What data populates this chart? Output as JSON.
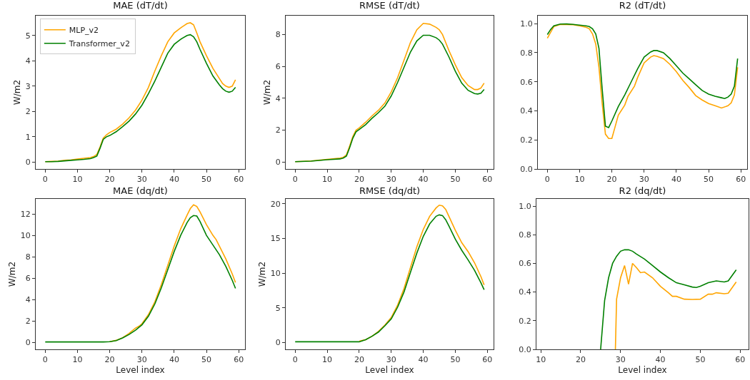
{
  "chart_data": [
    {
      "type": "line",
      "title": "MAE (dT/dt)",
      "ylabel": "W/m2",
      "legend": "top left",
      "xlim": [
        -2.95,
        61.95
      ],
      "xticks": [
        0,
        10,
        20,
        30,
        40,
        50,
        60
      ],
      "ylim": [
        -0.27,
        5.78
      ],
      "yticks": [
        0,
        1,
        2,
        3,
        4,
        5
      ],
      "series": [
        {
          "name": "MLP_v2",
          "color": "#ffa500",
          "x": [
            0,
            2,
            4,
            6,
            8,
            10,
            12,
            14,
            15,
            16,
            17,
            18,
            19,
            20,
            22,
            24,
            26,
            28,
            30,
            32,
            34,
            36,
            38,
            40,
            42,
            44,
            45,
            46,
            47,
            48,
            50,
            52,
            54,
            55,
            56,
            57,
            58,
            59
          ],
          "values": [
            0.02,
            0.03,
            0.04,
            0.07,
            0.09,
            0.12,
            0.15,
            0.18,
            0.22,
            0.3,
            0.6,
            0.95,
            1.08,
            1.17,
            1.3,
            1.5,
            1.75,
            2.05,
            2.45,
            2.95,
            3.6,
            4.2,
            4.75,
            5.1,
            5.3,
            5.47,
            5.5,
            5.42,
            5.1,
            4.75,
            4.2,
            3.7,
            3.3,
            3.1,
            3.0,
            2.95,
            3.0,
            3.25
          ]
        },
        {
          "name": "Transformer_v2",
          "color": "#008000",
          "x": [
            0,
            2,
            4,
            6,
            8,
            10,
            12,
            14,
            15,
            16,
            17,
            18,
            19,
            20,
            22,
            24,
            26,
            28,
            30,
            32,
            34,
            36,
            38,
            40,
            42,
            44,
            45,
            46,
            47,
            48,
            50,
            52,
            54,
            55,
            56,
            57,
            58,
            59
          ],
          "values": [
            0.02,
            0.02,
            0.03,
            0.05,
            0.07,
            0.09,
            0.11,
            0.14,
            0.18,
            0.24,
            0.55,
            0.9,
            1.0,
            1.05,
            1.2,
            1.4,
            1.62,
            1.9,
            2.25,
            2.7,
            3.2,
            3.75,
            4.3,
            4.65,
            4.85,
            5.0,
            5.03,
            4.95,
            4.75,
            4.45,
            3.9,
            3.4,
            3.05,
            2.9,
            2.8,
            2.76,
            2.8,
            2.95
          ]
        }
      ]
    },
    {
      "type": "line",
      "title": "RMSE (dT/dt)",
      "ylabel": "W/m2",
      "xlim": [
        -2.95,
        61.95
      ],
      "xticks": [
        0,
        10,
        20,
        30,
        40,
        50,
        60
      ],
      "ylim": [
        -0.43,
        9.18
      ],
      "yticks": [
        0,
        2,
        4,
        6,
        8
      ],
      "series": [
        {
          "color": "#ffa500",
          "x": [
            0,
            5,
            10,
            14,
            15,
            16,
            17,
            18,
            19,
            20,
            22,
            24,
            26,
            28,
            30,
            32,
            34,
            36,
            38,
            40,
            42,
            44,
            45,
            46,
            48,
            50,
            52,
            54,
            56,
            57,
            58,
            59
          ],
          "values": [
            0.03,
            0.07,
            0.17,
            0.25,
            0.3,
            0.45,
            1.0,
            1.6,
            2.0,
            2.15,
            2.5,
            2.9,
            3.25,
            3.7,
            4.4,
            5.3,
            6.4,
            7.5,
            8.3,
            8.7,
            8.65,
            8.45,
            8.3,
            8.0,
            7.0,
            6.1,
            5.3,
            4.8,
            4.55,
            4.55,
            4.65,
            4.95
          ]
        },
        {
          "color": "#008000",
          "x": [
            0,
            5,
            10,
            14,
            15,
            16,
            17,
            18,
            19,
            20,
            22,
            24,
            26,
            28,
            30,
            32,
            34,
            36,
            38,
            40,
            42,
            44,
            45,
            46,
            48,
            50,
            52,
            54,
            56,
            57,
            58,
            59
          ],
          "values": [
            0.03,
            0.06,
            0.15,
            0.2,
            0.25,
            0.38,
            0.9,
            1.5,
            1.9,
            2.05,
            2.35,
            2.75,
            3.1,
            3.5,
            4.15,
            5.0,
            5.95,
            6.9,
            7.6,
            7.95,
            7.95,
            7.8,
            7.65,
            7.4,
            6.6,
            5.7,
            4.95,
            4.5,
            4.3,
            4.27,
            4.32,
            4.55
          ]
        }
      ]
    },
    {
      "type": "line",
      "title": "R2 (dT/dt)",
      "xlim": [
        -2.95,
        61.95
      ],
      "xticks": [
        0,
        10,
        20,
        30,
        40,
        50,
        60
      ],
      "ylim": [
        0,
        1.055
      ],
      "yticks": [
        {
          "value": 0,
          "label": "0.0"
        },
        {
          "value": 0.2,
          "label": "0.2"
        },
        {
          "value": 0.4,
          "label": "0.4"
        },
        {
          "value": 0.6,
          "label": "0.6"
        },
        {
          "value": 0.8,
          "label": "0.8"
        },
        {
          "value": 1,
          "label": "1.0"
        }
      ],
      "series": [
        {
          "color": "#ffa500",
          "x": [
            0,
            1,
            2,
            4,
            8,
            10,
            12,
            13,
            14,
            15,
            16,
            17,
            18,
            19,
            20,
            21,
            22,
            24,
            25,
            27,
            28,
            30,
            32,
            33,
            34,
            36,
            38,
            40,
            42,
            44,
            46,
            48,
            50,
            52,
            54,
            56,
            57,
            58,
            59
          ],
          "values": [
            0.9,
            0.94,
            0.98,
            0.995,
            0.993,
            0.985,
            0.975,
            0.965,
            0.93,
            0.86,
            0.7,
            0.45,
            0.24,
            0.21,
            0.21,
            0.29,
            0.37,
            0.44,
            0.5,
            0.57,
            0.63,
            0.73,
            0.77,
            0.78,
            0.775,
            0.76,
            0.72,
            0.67,
            0.61,
            0.56,
            0.505,
            0.475,
            0.45,
            0.435,
            0.42,
            0.435,
            0.455,
            0.51,
            0.7
          ]
        },
        {
          "color": "#008000",
          "x": [
            0,
            1,
            2,
            4,
            6,
            8,
            10,
            12,
            13,
            14,
            15,
            16,
            17,
            18,
            19,
            20,
            22,
            24,
            26,
            28,
            30,
            32,
            33,
            34,
            36,
            38,
            40,
            42,
            44,
            46,
            48,
            50,
            52,
            54,
            55,
            56,
            57,
            58,
            59
          ],
          "values": [
            0.925,
            0.96,
            0.985,
            0.997,
            0.998,
            0.995,
            0.99,
            0.985,
            0.98,
            0.965,
            0.93,
            0.83,
            0.55,
            0.295,
            0.285,
            0.33,
            0.43,
            0.51,
            0.6,
            0.69,
            0.77,
            0.805,
            0.815,
            0.815,
            0.8,
            0.76,
            0.71,
            0.66,
            0.62,
            0.58,
            0.54,
            0.515,
            0.5,
            0.49,
            0.485,
            0.495,
            0.515,
            0.57,
            0.76
          ]
        }
      ]
    },
    {
      "type": "line",
      "title": "MAE (dq/dt)",
      "xlabel": "Level index",
      "ylabel": "W/m2",
      "xlim": [
        -2.95,
        61.95
      ],
      "xticks": [
        0,
        10,
        20,
        30,
        40,
        50,
        60
      ],
      "ylim": [
        -0.64,
        13.4
      ],
      "yticks": [
        0,
        2,
        4,
        6,
        8,
        10,
        12
      ],
      "series": [
        {
          "color": "#ffa500",
          "x": [
            20,
            22,
            24,
            26,
            27,
            28,
            29,
            30,
            32,
            34,
            36,
            38,
            40,
            42,
            44,
            45,
            46,
            47,
            48,
            50,
            52,
            53,
            54,
            56,
            58,
            59
          ],
          "values": [
            0.08,
            0.2,
            0.45,
            0.85,
            1.1,
            1.35,
            1.5,
            1.75,
            2.6,
            3.8,
            5.4,
            7.2,
            9.0,
            10.6,
            11.9,
            12.5,
            12.85,
            12.7,
            12.2,
            11.0,
            10.0,
            9.6,
            9.0,
            7.8,
            6.4,
            5.6
          ]
        },
        {
          "color": "#008000",
          "x": [
            0,
            10,
            18,
            20,
            22,
            24,
            26,
            28,
            30,
            32,
            34,
            36,
            38,
            40,
            42,
            44,
            45,
            46,
            47,
            48,
            50,
            52,
            54,
            56,
            58,
            59
          ],
          "values": [
            0.05,
            0.05,
            0.05,
            0.08,
            0.18,
            0.42,
            0.75,
            1.15,
            1.65,
            2.45,
            3.6,
            5.1,
            6.8,
            8.5,
            10.0,
            11.2,
            11.65,
            11.85,
            11.8,
            11.3,
            10.0,
            9.1,
            8.2,
            7.1,
            5.8,
            5.05
          ]
        }
      ]
    },
    {
      "type": "line",
      "title": "RMSE (dq/dt)",
      "xlabel": "Level index",
      "ylabel": "W/m2",
      "xlim": [
        -2.95,
        61.95
      ],
      "xticks": [
        0,
        10,
        20,
        30,
        40,
        50,
        60
      ],
      "ylim": [
        -0.99,
        20.7
      ],
      "yticks": [
        0,
        5,
        10,
        15,
        20
      ],
      "series": [
        {
          "color": "#ffa500",
          "x": [
            20,
            22,
            24,
            26,
            28,
            30,
            32,
            34,
            36,
            38,
            40,
            42,
            44,
            45,
            46,
            47,
            48,
            50,
            52,
            54,
            56,
            58,
            59
          ],
          "values": [
            0.2,
            0.4,
            0.9,
            1.6,
            2.5,
            3.6,
            5.4,
            7.8,
            10.8,
            13.8,
            16.3,
            18.2,
            19.4,
            19.8,
            19.7,
            19.2,
            18.2,
            16.2,
            14.4,
            13.1,
            11.5,
            9.5,
            8.3
          ]
        },
        {
          "color": "#008000",
          "x": [
            0,
            10,
            18,
            20,
            22,
            24,
            26,
            28,
            30,
            32,
            34,
            36,
            38,
            40,
            42,
            44,
            45,
            46,
            47,
            48,
            50,
            52,
            54,
            56,
            58,
            59
          ],
          "values": [
            0.1,
            0.1,
            0.1,
            0.1,
            0.4,
            0.9,
            1.5,
            2.4,
            3.4,
            5.1,
            7.3,
            10.1,
            12.9,
            15.3,
            17.1,
            18.2,
            18.4,
            18.3,
            17.7,
            16.8,
            14.9,
            13.3,
            11.9,
            10.4,
            8.6,
            7.6
          ]
        }
      ]
    },
    {
      "type": "line",
      "title": "R2 (dq/dt)",
      "xlabel": "Level index",
      "xlim": [
        8.9,
        62.1
      ],
      "xticks": [
        10,
        20,
        30,
        40,
        50,
        60
      ],
      "ylim": [
        0,
        1.05
      ],
      "yticks": [
        {
          "value": 0,
          "label": "0.0"
        },
        {
          "value": 0.2,
          "label": "0.2"
        },
        {
          "value": 0.4,
          "label": "0.4"
        },
        {
          "value": 0.6,
          "label": "0.6"
        },
        {
          "value": 0.8,
          "label": "0.8"
        },
        {
          "value": 1,
          "label": "1.0"
        }
      ],
      "series": [
        {
          "color": "#ffa500",
          "x": [
            28.7,
            29,
            30,
            31,
            32,
            33,
            34,
            35,
            36,
            38,
            40,
            42,
            43,
            44,
            46,
            48,
            50,
            52,
            53,
            54,
            56,
            57,
            59
          ],
          "values": [
            0,
            0.35,
            0.5,
            0.585,
            0.455,
            0.6,
            0.57,
            0.535,
            0.54,
            0.5,
            0.44,
            0.395,
            0.37,
            0.37,
            0.35,
            0.348,
            0.35,
            0.385,
            0.385,
            0.395,
            0.388,
            0.392,
            0.47
          ]
        },
        {
          "color": "#008000",
          "x": [
            25,
            26,
            27,
            28,
            29,
            30,
            31,
            32,
            33,
            34,
            36,
            38,
            40,
            42,
            44,
            46,
            48,
            49,
            50,
            52,
            54,
            56,
            57,
            59
          ],
          "values": [
            0,
            0.34,
            0.5,
            0.6,
            0.65,
            0.685,
            0.695,
            0.695,
            0.685,
            0.665,
            0.63,
            0.585,
            0.54,
            0.5,
            0.465,
            0.45,
            0.435,
            0.432,
            0.44,
            0.465,
            0.478,
            0.47,
            0.478,
            0.555
          ]
        }
      ]
    }
  ]
}
